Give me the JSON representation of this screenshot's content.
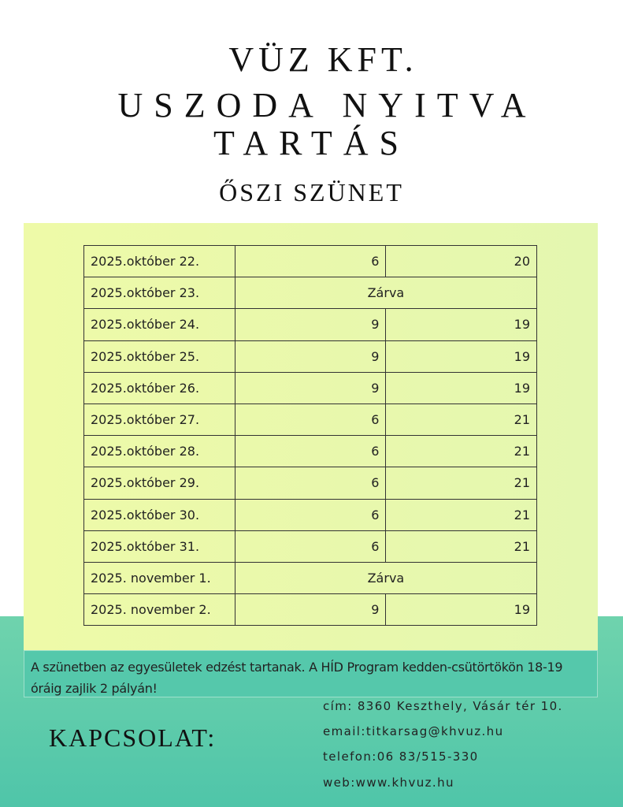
{
  "title": {
    "line1": "VÜZ KFT.",
    "line2": "USZODA NYITVA",
    "line3": "TARTÁS",
    "subtitle": "ŐSZI SZÜNET"
  },
  "schedule": [
    {
      "date": "2025.október 22.",
      "open": "6",
      "close": "20"
    },
    {
      "date": "2025.október 23.",
      "closed": "Zárva"
    },
    {
      "date": "2025.október 24.",
      "open": "9",
      "close": "19"
    },
    {
      "date": "2025.október 25.",
      "open": "9",
      "close": "19"
    },
    {
      "date": "2025.október 26.",
      "open": "9",
      "close": "19"
    },
    {
      "date": "2025.október 27.",
      "open": "6",
      "close": "21"
    },
    {
      "date": "2025.október 28.",
      "open": "6",
      "close": "21"
    },
    {
      "date": "2025.október 29.",
      "open": "6",
      "close": "21"
    },
    {
      "date": "2025.október 30.",
      "open": "6",
      "close": "21"
    },
    {
      "date": "2025.október 31.",
      "open": "6",
      "close": "21"
    },
    {
      "date": "2025. november 1.",
      "closed": "Zárva"
    },
    {
      "date": "2025. november 2.",
      "open": "9",
      "close": "19"
    }
  ],
  "note": "A szünetben az egyesületek edzést tartanak. A HÍD Program kedden-csütörtökön 18-19 óráig zajlik 2 pályán!",
  "contact": {
    "heading": "KAPCSOLAT:",
    "address": "cím: 8360 Keszthely, Vásár tér 10.",
    "email": "email:titkarsag@khvuz.hu",
    "phone": "telefon:06 83/515-330",
    "web": "web:www.khvuz.hu"
  },
  "colors": {
    "panel": "#e9f9ac",
    "teal": "#55c8ab"
  }
}
